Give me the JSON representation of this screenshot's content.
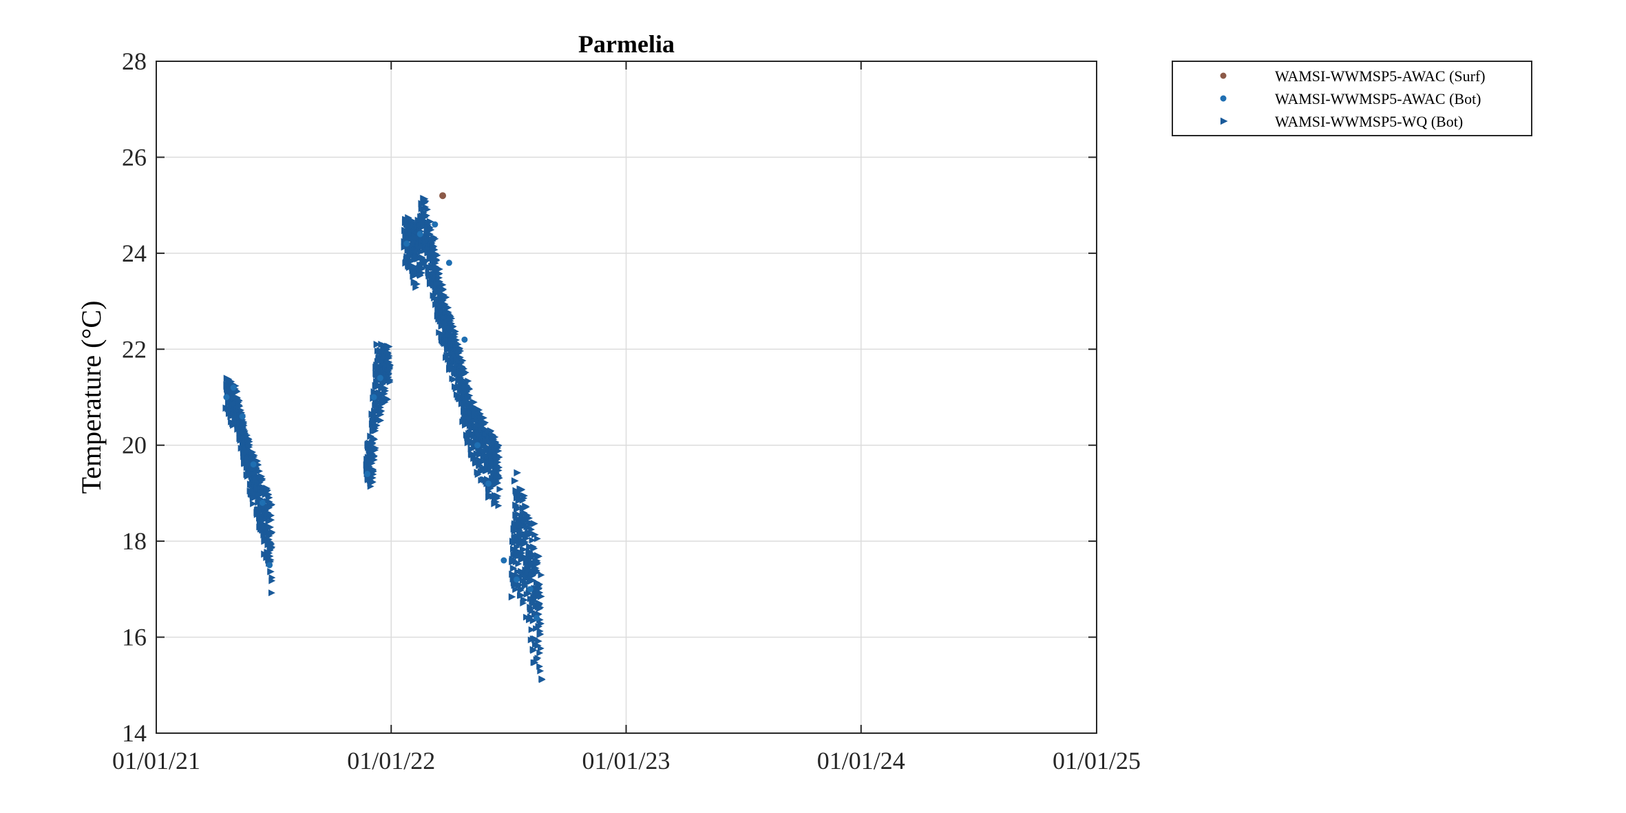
{
  "chart_data": {
    "type": "scatter",
    "title": "Parmelia",
    "xlabel": "",
    "ylabel": "Temperature (°C)",
    "xlim": [
      "2021-01-01",
      "2025-01-01"
    ],
    "ylim": [
      14,
      28
    ],
    "xticks": [
      "2021-01-01",
      "2022-01-01",
      "2023-01-01",
      "2024-01-01",
      "2025-01-01"
    ],
    "xtick_labels": [
      "01/01/21",
      "01/01/22",
      "01/01/23",
      "01/01/24",
      "01/01/25"
    ],
    "yticks": [
      14,
      16,
      18,
      20,
      22,
      24,
      26,
      28
    ],
    "ytick_labels": [
      "14",
      "16",
      "18",
      "20",
      "22",
      "24",
      "26",
      "28"
    ],
    "grid": true,
    "legend_position": "outside-top-right",
    "series": [
      {
        "name": "WAMSI-WWMSP5-AWAC (Surf)",
        "marker": "circle",
        "color": "#8c5a48",
        "points": [
          [
            "2022-03-22",
            25.2
          ]
        ]
      },
      {
        "name": "WAMSI-WWMSP5-AWAC (Bot)",
        "marker": "circle",
        "color": "#1f6fb2",
        "points": [
          [
            "2021-04-20",
            21.0
          ],
          [
            "2021-05-01",
            21.2
          ],
          [
            "2021-05-15",
            20.6
          ],
          [
            "2021-06-01",
            19.6
          ],
          [
            "2021-06-15",
            18.8
          ],
          [
            "2021-06-26",
            17.5
          ],
          [
            "2021-11-25",
            19.4
          ],
          [
            "2021-12-05",
            21.0
          ],
          [
            "2021-12-15",
            21.4
          ],
          [
            "2022-01-25",
            24.2
          ],
          [
            "2022-02-15",
            24.4
          ],
          [
            "2022-03-10",
            24.6
          ],
          [
            "2022-04-01",
            23.8
          ],
          [
            "2022-04-25",
            22.2
          ],
          [
            "2022-05-15",
            20.0
          ],
          [
            "2022-06-01",
            19.2
          ],
          [
            "2022-06-25",
            17.6
          ],
          [
            "2022-07-15",
            17.2
          ],
          [
            "2022-08-05",
            17.0
          ],
          [
            "2022-08-15",
            16.4
          ]
        ]
      },
      {
        "name": "WAMSI-WWMSP5-WQ (Bot)",
        "marker": "triangle-right",
        "color": "#1a5a9a",
        "segments": [
          {
            "start": "2021-04-19",
            "end": "2021-06-28",
            "upper": [
              [
                0,
                21.5
              ],
              [
                0.2,
                21.2
              ],
              [
                0.45,
                20.2
              ],
              [
                0.7,
                19.6
              ],
              [
                1,
                18.8
              ]
            ],
            "lower": [
              [
                0,
                20.6
              ],
              [
                0.25,
                20.2
              ],
              [
                0.5,
                19.0
              ],
              [
                0.75,
                18.2
              ],
              [
                1,
                16.6
              ]
            ]
          },
          {
            "start": "2021-11-23",
            "end": "2021-12-28",
            "upper": [
              [
                0,
                20.0
              ],
              [
                0.2,
                20.2
              ],
              [
                0.45,
                22.1
              ],
              [
                1,
                22.1
              ]
            ],
            "lower": [
              [
                0,
                19.0
              ],
              [
                0.2,
                19.2
              ],
              [
                0.4,
                20.0
              ],
              [
                0.7,
                20.8
              ],
              [
                1,
                21.0
              ]
            ]
          },
          {
            "start": "2022-01-21",
            "end": "2022-06-16",
            "upper": [
              [
                0,
                24.8
              ],
              [
                0.12,
                24.6
              ],
              [
                0.2,
                25.2
              ],
              [
                0.3,
                24.4
              ],
              [
                0.4,
                23.3
              ],
              [
                0.55,
                22.3
              ],
              [
                0.7,
                21.0
              ],
              [
                0.85,
                20.5
              ],
              [
                1,
                20.0
              ]
            ],
            "lower": [
              [
                0,
                23.8
              ],
              [
                0.12,
                23.2
              ],
              [
                0.2,
                23.8
              ],
              [
                0.3,
                22.9
              ],
              [
                0.4,
                22.0
              ],
              [
                0.55,
                21.0
              ],
              [
                0.7,
                19.7
              ],
              [
                0.85,
                19.0
              ],
              [
                1,
                18.6
              ]
            ]
          },
          {
            "start": "2022-07-07",
            "end": "2022-08-20",
            "upper": [
              [
                0,
                17.5
              ],
              [
                0.12,
                19.5
              ],
              [
                0.35,
                19.1
              ],
              [
                0.55,
                18.5
              ],
              [
                0.75,
                18.4
              ],
              [
                1,
                17.4
              ]
            ],
            "lower": [
              [
                0,
                16.8
              ],
              [
                0.12,
                17.0
              ],
              [
                0.35,
                16.6
              ],
              [
                0.55,
                16.2
              ],
              [
                0.75,
                15.4
              ],
              [
                1,
                15.1
              ]
            ]
          }
        ]
      }
    ]
  }
}
